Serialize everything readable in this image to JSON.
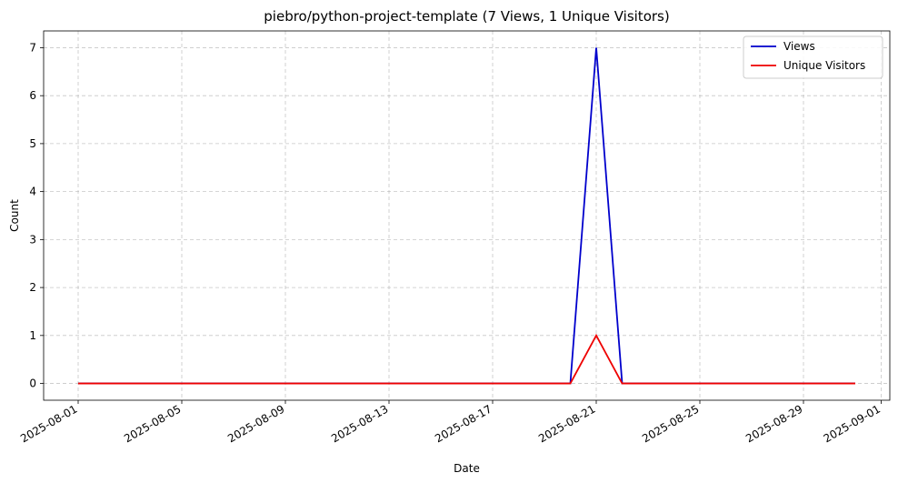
{
  "chart_data": {
    "type": "line",
    "title": "piebro/python-project-template (7 Views, 1 Unique Visitors)",
    "xlabel": "Date",
    "ylabel": "Count",
    "x": [
      "2025-08-01",
      "2025-08-02",
      "2025-08-03",
      "2025-08-04",
      "2025-08-05",
      "2025-08-06",
      "2025-08-07",
      "2025-08-08",
      "2025-08-09",
      "2025-08-10",
      "2025-08-11",
      "2025-08-12",
      "2025-08-13",
      "2025-08-14",
      "2025-08-15",
      "2025-08-16",
      "2025-08-17",
      "2025-08-18",
      "2025-08-19",
      "2025-08-20",
      "2025-08-21",
      "2025-08-22",
      "2025-08-23",
      "2025-08-24",
      "2025-08-25",
      "2025-08-26",
      "2025-08-27",
      "2025-08-28",
      "2025-08-29",
      "2025-08-30",
      "2025-08-31"
    ],
    "series": [
      {
        "name": "Views",
        "color": "#0000cc",
        "values": [
          0,
          0,
          0,
          0,
          0,
          0,
          0,
          0,
          0,
          0,
          0,
          0,
          0,
          0,
          0,
          0,
          0,
          0,
          0,
          0,
          7,
          0,
          0,
          0,
          0,
          0,
          0,
          0,
          0,
          0,
          0
        ]
      },
      {
        "name": "Unique Visitors",
        "color": "#ee0000",
        "values": [
          0,
          0,
          0,
          0,
          0,
          0,
          0,
          0,
          0,
          0,
          0,
          0,
          0,
          0,
          0,
          0,
          0,
          0,
          0,
          0,
          1,
          0,
          0,
          0,
          0,
          0,
          0,
          0,
          0,
          0,
          0
        ]
      }
    ],
    "xlim": [
      "2025-07-30T16:00",
      "2025-09-01T08:00"
    ],
    "ylim": [
      -0.35,
      7.35
    ],
    "xticks": [
      "2025-08-01",
      "2025-08-05",
      "2025-08-09",
      "2025-08-13",
      "2025-08-17",
      "2025-08-21",
      "2025-08-25",
      "2025-08-29",
      "2025-09-01"
    ],
    "yticks": [
      0,
      1,
      2,
      3,
      4,
      5,
      6,
      7
    ],
    "grid": true,
    "legend_position": "top-right"
  }
}
